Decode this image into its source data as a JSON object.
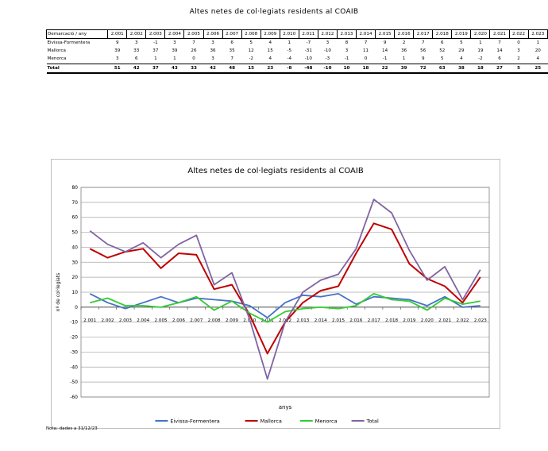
{
  "page": {
    "table_title": "Altes netes de col·legiats residents al COAIB",
    "note": "Nota: dades a 31/12/23"
  },
  "table": {
    "header_label": "Demarcació / any",
    "years": [
      "2.001",
      "2.002",
      "2.003",
      "2.004",
      "2.005",
      "2.006",
      "2.007",
      "2.008",
      "2.009",
      "2.010",
      "2.011",
      "2.012",
      "2.013",
      "2.014",
      "2.015",
      "2.016",
      "2.017",
      "2.018",
      "2.019",
      "2.020",
      "2.021",
      "2.022",
      "2.023"
    ],
    "rows": [
      {
        "label": "Eivissa-Formentera",
        "values": [
          9,
          3,
          -1,
          3,
          7,
          3,
          6,
          5,
          4,
          1,
          -7,
          3,
          8,
          7,
          9,
          2,
          7,
          6,
          5,
          1,
          7,
          0,
          1
        ]
      },
      {
        "label": "Mallorca",
        "values": [
          39,
          33,
          37,
          39,
          26,
          36,
          35,
          12,
          15,
          -5,
          -31,
          -10,
          3,
          11,
          14,
          36,
          56,
          52,
          29,
          19,
          14,
          3,
          20
        ]
      },
      {
        "label": "Menorca",
        "values": [
          3,
          6,
          1,
          1,
          0,
          3,
          7,
          -2,
          4,
          -4,
          -10,
          -3,
          -1,
          0,
          -1,
          1,
          9,
          5,
          4,
          -2,
          6,
          2,
          4
        ]
      }
    ],
    "total": {
      "label": "Total",
      "values": [
        51,
        42,
        37,
        43,
        33,
        42,
        48,
        15,
        23,
        -8,
        -48,
        -10,
        10,
        18,
        22,
        39,
        72,
        63,
        38,
        18,
        27,
        5,
        25
      ]
    }
  },
  "chart_data": {
    "type": "line",
    "title": "Altes netes de col·legiats residents al COAIB",
    "xlabel": "anys",
    "ylabel": "nº de col·legiats",
    "ylim": [
      -60,
      80
    ],
    "yticks": [
      -60,
      -50,
      -40,
      -30,
      -20,
      -10,
      0,
      10,
      20,
      30,
      40,
      50,
      60,
      70,
      80
    ],
    "grid": true,
    "legend_position": "bottom",
    "x": [
      "2.001",
      "2.002",
      "2.003",
      "2.004",
      "2.005",
      "2.006",
      "2.007",
      "2.008",
      "2.009",
      "2.010",
      "2.011",
      "2.012",
      "2.013",
      "2.014",
      "2.015",
      "2.016",
      "2.017",
      "2.018",
      "2.019",
      "2.020",
      "2.021",
      "2.022",
      "2.023"
    ],
    "series": [
      {
        "name": "Eivissa-Formentera",
        "color": "#4472C4",
        "values": [
          9,
          3,
          -1,
          3,
          7,
          3,
          6,
          5,
          4,
          1,
          -7,
          3,
          8,
          7,
          9,
          2,
          7,
          6,
          5,
          1,
          7,
          0,
          1
        ]
      },
      {
        "name": "Mallorca",
        "color": "#C00000",
        "values": [
          39,
          33,
          37,
          39,
          26,
          36,
          35,
          12,
          15,
          -5,
          -31,
          -10,
          3,
          11,
          14,
          36,
          56,
          52,
          29,
          19,
          14,
          3,
          20
        ]
      },
      {
        "name": "Menorca",
        "color": "#33CC33",
        "values": [
          3,
          6,
          1,
          1,
          0,
          3,
          7,
          -2,
          4,
          -4,
          -10,
          -3,
          -1,
          0,
          -1,
          1,
          9,
          5,
          4,
          -2,
          6,
          2,
          4
        ]
      },
      {
        "name": "Total",
        "color": "#8064A2",
        "values": [
          51,
          42,
          37,
          43,
          33,
          42,
          48,
          15,
          23,
          -8,
          -48,
          -10,
          10,
          18,
          22,
          39,
          72,
          63,
          38,
          18,
          27,
          5,
          25
        ]
      }
    ]
  }
}
